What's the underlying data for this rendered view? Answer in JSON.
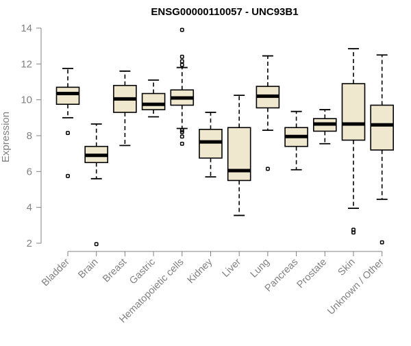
{
  "chart_data": {
    "type": "boxplot",
    "title": "ENSG00000110057 - UNC93B1",
    "xlabel": "",
    "ylabel": "Expression",
    "ylim": [
      2,
      14
    ],
    "yticks": [
      2,
      4,
      6,
      8,
      10,
      12,
      14
    ],
    "grid": false,
    "colors": {
      "box_fill": "#efe8cf",
      "box_stroke": "#000000",
      "axis": "#808080"
    },
    "categories": [
      "Bladder",
      "Brain",
      "Breast",
      "Gastric",
      "Hematopoietic cells",
      "Kidney",
      "Liver",
      "Lung",
      "Pancreas",
      "Prostate",
      "Skin",
      "Unknown / Other"
    ],
    "boxes": [
      {
        "category": "Bladder",
        "whisker_low": 9.0,
        "q1": 9.75,
        "median": 10.35,
        "q3": 10.7,
        "whisker_high": 11.75,
        "outliers": [
          8.15,
          5.75
        ]
      },
      {
        "category": "Brain",
        "whisker_low": 5.6,
        "q1": 6.5,
        "median": 6.9,
        "q3": 7.4,
        "whisker_high": 8.65,
        "outliers": [
          1.95
        ]
      },
      {
        "category": "Breast",
        "whisker_low": 7.45,
        "q1": 9.3,
        "median": 10.05,
        "q3": 10.8,
        "whisker_high": 11.6,
        "outliers": []
      },
      {
        "category": "Gastric",
        "whisker_low": 9.05,
        "q1": 9.45,
        "median": 9.75,
        "q3": 10.35,
        "whisker_high": 11.1,
        "outliers": []
      },
      {
        "category": "Hematopoietic cells",
        "whisker_low": 8.4,
        "q1": 9.7,
        "median": 10.1,
        "q3": 10.55,
        "whisker_high": 11.8,
        "outliers": [
          13.9,
          12.4,
          12.15,
          11.95,
          8.3,
          8.2,
          7.95,
          7.55
        ]
      },
      {
        "category": "Kidney",
        "whisker_low": 5.7,
        "q1": 6.75,
        "median": 7.65,
        "q3": 8.35,
        "whisker_high": 9.3,
        "outliers": []
      },
      {
        "category": "Liver",
        "whisker_low": 3.55,
        "q1": 5.5,
        "median": 6.05,
        "q3": 8.45,
        "whisker_high": 10.25,
        "outliers": []
      },
      {
        "category": "Lung",
        "whisker_low": 8.3,
        "q1": 9.55,
        "median": 10.2,
        "q3": 10.75,
        "whisker_high": 12.45,
        "outliers": [
          6.15
        ]
      },
      {
        "category": "Pancreas",
        "whisker_low": 6.1,
        "q1": 7.4,
        "median": 7.95,
        "q3": 8.45,
        "whisker_high": 9.35,
        "outliers": []
      },
      {
        "category": "Prostate",
        "whisker_low": 7.55,
        "q1": 8.25,
        "median": 8.65,
        "q3": 8.95,
        "whisker_high": 9.45,
        "outliers": []
      },
      {
        "category": "Skin",
        "whisker_low": 3.95,
        "q1": 7.75,
        "median": 8.65,
        "q3": 10.9,
        "whisker_high": 12.85,
        "outliers": [
          2.75,
          2.6
        ]
      },
      {
        "category": "Unknown / Other",
        "whisker_low": 4.45,
        "q1": 7.2,
        "median": 8.6,
        "q3": 9.7,
        "whisker_high": 12.5,
        "outliers": [
          2.05
        ]
      }
    ]
  }
}
